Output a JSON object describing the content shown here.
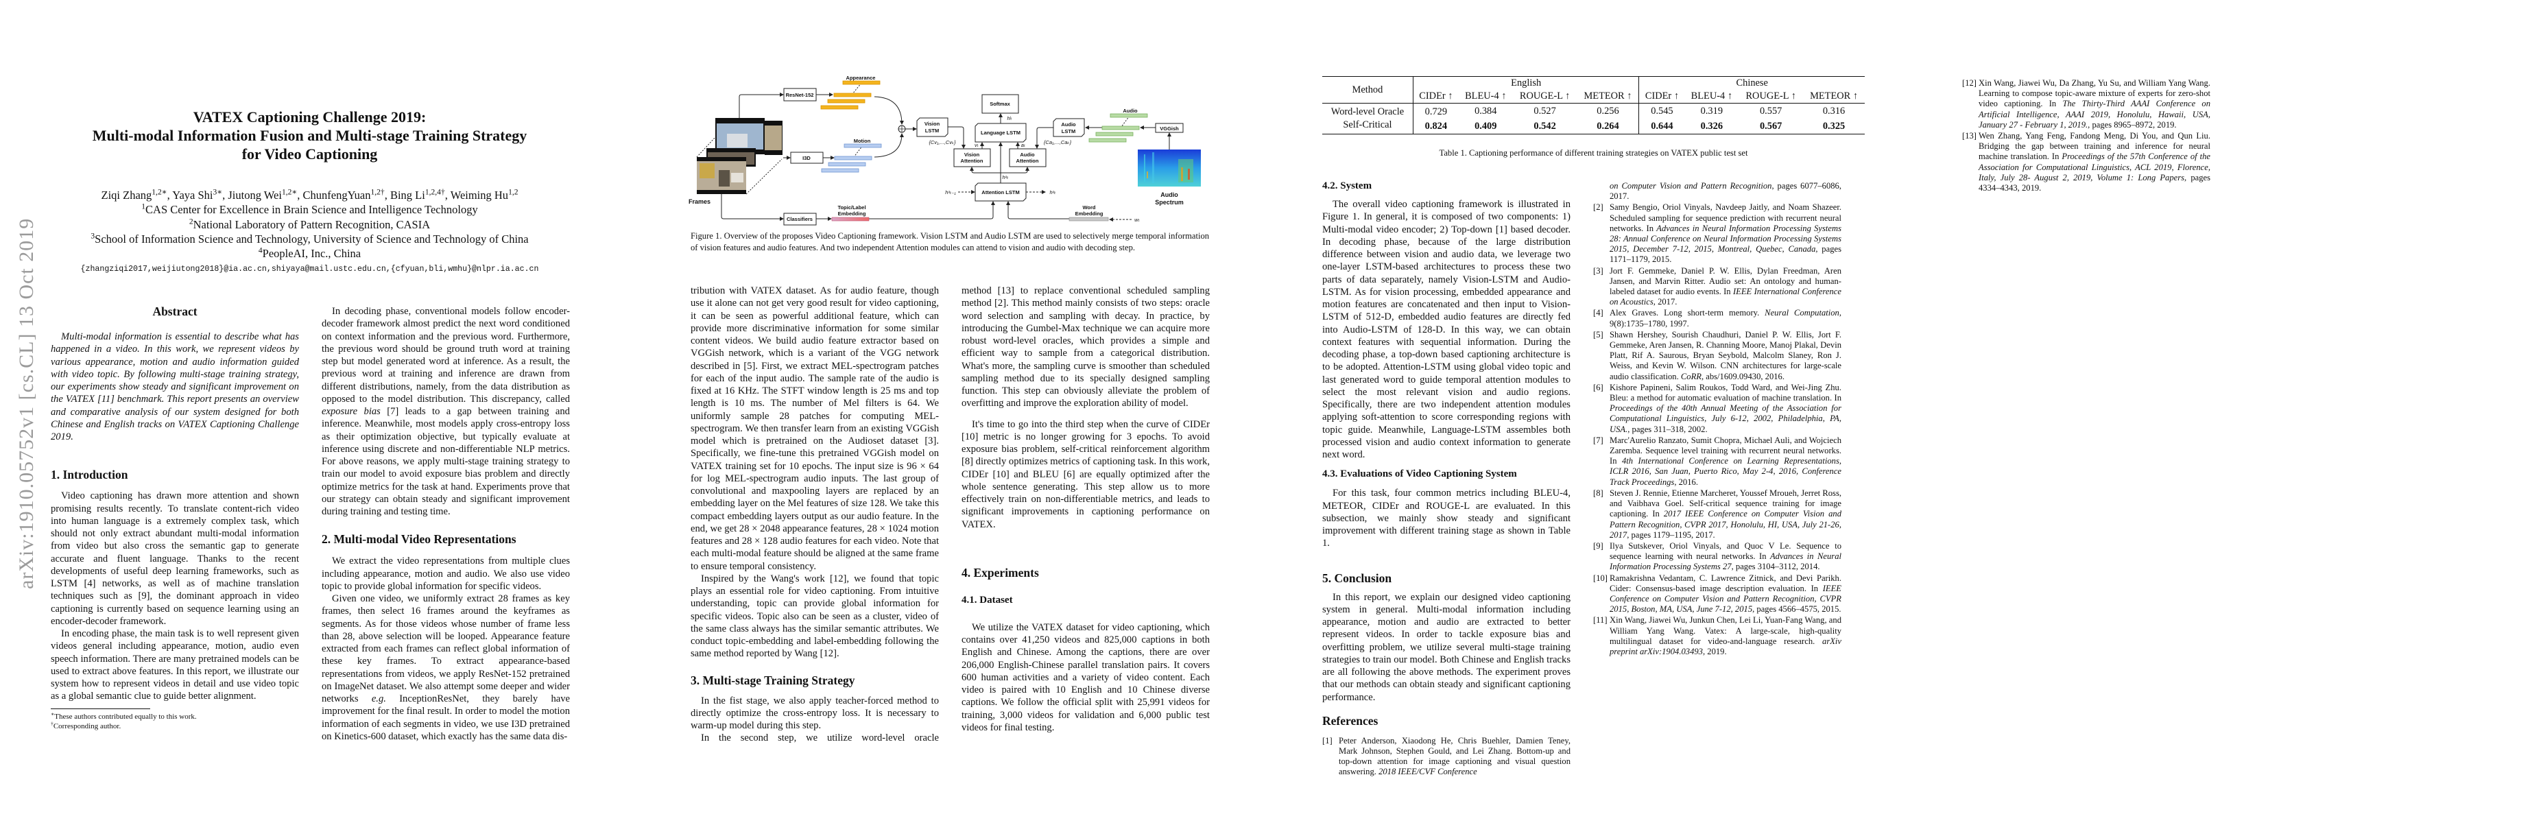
{
  "arxiv_stamp": "arXiv:1910.05752v1  [cs.CL]  13 Oct 2019",
  "page1": {
    "title_lines": [
      "VATEX Captioning Challenge 2019:",
      "Multi-modal Information Fusion and Multi-stage Training Strategy",
      "for Video Captioning"
    ],
    "authors": [
      {
        "name": "Ziqi Zhang",
        "sup": "1,2∗"
      },
      {
        "name": "Yaya Shi",
        "sup": "3∗"
      },
      {
        "name": "Jiutong Wei",
        "sup": "1,2∗"
      },
      {
        "name": "ChunfengYuan",
        "sup": "1,2†"
      },
      {
        "name": "Bing Li",
        "sup": "1,2,4†"
      },
      {
        "name": "Weiming Hu",
        "sup": "1,2"
      }
    ],
    "affiliations": [
      {
        "sup": "1",
        "text": "CAS Center for Excellence in Brain Science and Intelligence Technology"
      },
      {
        "sup": "2",
        "text": "National Laboratory of Pattern Recognition, CASIA"
      },
      {
        "sup": "3",
        "text": "School of Information Science and Technology, University of Science and Technology of China"
      },
      {
        "sup": "4",
        "text": "PeopleAI, Inc., China"
      }
    ],
    "email": "{zhangziqi2017,weijiutong2018}@ia.ac.cn,shiyaya@mail.ustc.edu.cn,{cfyuan,bli,wmhu}@nlpr.ia.ac.cn",
    "abstract_heading": "Abstract",
    "abstract": "Multi-modal information is essential to describe what has happened in a video. In this work, we represent videos by various appearance, motion and audio information guided with video topic. By following multi-stage training strategy, our experiments show steady and significant improvement on the VATEX [11] benchmark. This report presents an overview and comparative analysis of our system designed for both Chinese and English tracks on VATEX Captioning Challenge 2019.",
    "intro_heading": "1. Introduction",
    "intro_p1": "Video captioning has drawn more attention and shown promising results recently. To translate content-rich video into human language is a extremely complex task, which should not only extract abundant multi-modal information from video but also cross the semantic gap to generate accurate and fluent language. Thanks to the recent developments of useful deep learning frameworks, such as LSTM [4] networks, as well as of machine translation techniques such as [9], the dominant approach in video captioning is currently based on sequence learning using an encoder-decoder framework.",
    "intro_p2": "In encoding phase, the main task is to well represent given videos general including appearance, motion, audio even speech information. There are many pretrained models can be used to extract above features. In this report, we illustrate our system how to represent videos in detail and use video topic as a global semantic clue to guide better alignment.",
    "footnotes": [
      {
        "mark": "∗",
        "text": "These authors contributed equally to this work."
      },
      {
        "mark": "†",
        "text": "Corresponding author."
      }
    ],
    "decoding_p": {
      "a": "In decoding phase, conventional models follow encoder-decoder framework almost predict the next word conditioned on context information and the previous word. Furthermore, the previous word should be ground truth word at training step but model generated word at inference. As a result, the previous word at training and inference are drawn from different distributions, namely, from the data distribution as opposed to the model distribution. This discrepancy, called ",
      "em": "exposure bias",
      "b": " [7] leads to a gap between training and inference. Meanwhile, most models apply cross-entropy loss as their optimization objective, but typically evaluate at inference using discrete and non-differentiable NLP metrics. For above reasons, we apply multi-stage training strategy to train our model to avoid exposure bias problem and directly optimize metrics for the task at hand. Experiments prove that our strategy can obtain steady and significant improvement during training and testing time."
    },
    "sec2_heading": "2. Multi-modal Video Representations",
    "sec2_p1": "We extract the video representations from multiple clues including appearance, motion and audio. We also use video topic to provide global information for specific videos.",
    "sec2_p2": {
      "a": "Given one video, we uniformly extract 28 frames as key frames, then select 16 frames around the keyframes as segments. As for those videos whose number of frame less than 28, above selection will be looped. Appearance feature extracted from each frames can reflect global information of these key frames. To extract appearance-based representations from videos, we apply ResNet-152 pretrained on ImageNet dataset. We also attempt some deeper and wider networks ",
      "em": "e.g.",
      "b": " InceptionResNet, they barely have improvement for the final result. In order to model the motion information of each segments in video, we use I3D pretrained on Kinetics-600 dataset, which exactly has the same data dis-"
    }
  },
  "figure": {
    "labels": {
      "resnet": "ResNet-152",
      "i3d": "I3D",
      "classifiers": "Classifiers",
      "appearance": "Appearance",
      "motion": "Motion",
      "frames": "Frames",
      "topic_line1": "Topic/Label",
      "topic_line2": "Embedding",
      "vision_lstm_1": "Vision",
      "vision_lstm_2": "LSTM",
      "cv": "{Cv₁,...,Cvₖ}",
      "softmax": "Softmax",
      "hl": "hˡₜ",
      "language_lstm": "Language LSTM",
      "vt": "vₜ",
      "at": "aₜ",
      "vision_att_1": "Vision",
      "vision_att_2": "Attention",
      "audio_att_1": "Audio",
      "audio_att_2": "Attention",
      "ha_mid": "hᵃₜ",
      "ha_prev": "hᵃₜ₋₁",
      "attention_lstm": "Attention LSTM",
      "ha_out": "hᵃₜ",
      "audio_lstm_1": "Audio",
      "audio_lstm_2": "LSTM",
      "ca": "{Ca₁,...,Caₖ}",
      "audio": "Audio",
      "vggish": "VGGish",
      "spectrum_1": "Audio",
      "spectrum_2": "Spectrum",
      "word_1": "Word",
      "word_2": "Embedding",
      "wt": "wₜ"
    },
    "colors": {
      "appearance": "#f4b41e",
      "motion": "#b7cdf0",
      "audio": "#b8dba5",
      "topic": "#e3768a",
      "word": "#c8c8c8"
    },
    "caption": "Figure 1. Overview of the proposes Video Captioning framework. Vision LSTM and Audio LSTM are used to selectively merge temporal information of vision features and audio features. And two independent Attention modules can attend to vision and audio with decoding step."
  },
  "page2": {
    "col1_p1": "tribution with VATEX dataset. As for audio feature, though use it alone can not get very good result for video captioning, it can be seen as powerful additional feature, which can provide more discriminative information for some similar content videos. We build audio feature extractor based on VGGish network, which is a variant of the VGG network described in [5]. First, we extract MEL-spectrogram patches for each of the input audio. The sample rate of the audio is fixed at 16 KHz. The STFT window length is 25 ms and top length is 10 ms. The number of Mel filters is 64. We uniformly sample 28 patches for computing MEL-spectrogram. We then transfer learn from an existing VGGish model which is pretrained on the Audioset dataset [3]. Specifically, we fine-tune this pretrained VGGish model on VATEX training set for 10 epochs. The input size is 96 × 64 for log MEL-spectrogram audio inputs. The last group of convolutional and maxpooling layers are replaced by an embedding layer on the Mel features of size 128. We take this compact embedding layers output as our audio feature. In the end, we get 28 × 2048 appearance features, 28 × 1024 motion features and 28 × 128 audio features for each video. Note that each multi-modal feature should be aligned at the same frame to ensure temporal consistency.",
    "col1_p2": "Inspired by the Wang's work [12], we found that topic plays an essential role for video captioning. From intuitive understanding, topic can provide global information for specific videos. Topic also can be seen as a cluster, video of the same class always has the similar semantic attributes. We conduct topic-embedding and label-embedding following the same method reported by Wang [12].",
    "sec3_heading": "3. Multi-stage Training Strategy",
    "sec3_p1": "In the fist stage, we also apply teacher-forced method to directly optimize the cross-entropy loss. It is necessary to warm-up model during this step.",
    "sec3_p2": "In the second step, we utilize word-level oracle",
    "col2_p1": "method [13] to replace conventional scheduled sampling method [2]. This method mainly consists of two steps: oracle word selection and sampling with decay. In practice, by introducing the Gumbel-Max technique we can acquire more robust word-level oracles, which provides a simple and efficient way to sample from a categorical distribution. What's more, the sampling curve is smoother than scheduled sampling method due to its specially designed sampling function. This step can obviously alleviate the problem of overfitting and improve the exploration ability of model.",
    "col2_p2": "It's time to go into the third step when the curve of CIDEr [10] metric is no longer growing for 3 epochs. To avoid exposure bias problem, self-critical reinforcement algorithm [8] directly optimizes metrics of captioning task. In this work, CIDEr [10] and BLEU [6] are equally optimized after the whole sentence generating. This step allow us to more effectively train on non-differentiable metrics, and leads to significant improvements in captioning performance on VATEX.",
    "sec4_heading": "4. Experiments",
    "sec41_heading": "4.1. Dataset",
    "sec41_p": "We utilize the VATEX dataset for video captioning, which contains over 41,250 videos and 825,000 captions in both English and Chinese. Among the captions, there are over 206,000 English-Chinese parallel translation pairs. It covers 600 human activities and a variety of video content. Each video is paired with 10 English and 10 Chinese diverse captions. We follow the official split with 25,991 videos for training, 3,000 videos for validation and 6,000 public test videos for final testing."
  },
  "table": {
    "method_header": "Method",
    "groups": [
      "English",
      "Chinese"
    ],
    "metrics": [
      "CIDEr ↑",
      "BLEU-4 ↑",
      "ROUGE-L ↑",
      "METEOR ↑",
      "CIDEr ↑",
      "BLEU-4 ↑",
      "ROUGE-L ↑",
      "METEOR ↑"
    ],
    "rows": [
      {
        "method": "Word-level Oracle",
        "values": [
          "0.729",
          "0.384",
          "0.527",
          "0.256",
          "0.545",
          "0.319",
          "0.557",
          "0.316"
        ],
        "bold": false
      },
      {
        "method": "Self-Critical",
        "values": [
          "0.824",
          "0.409",
          "0.542",
          "0.264",
          "0.644",
          "0.326",
          "0.567",
          "0.325"
        ],
        "bold": true
      }
    ],
    "caption": "Table 1. Captioning performance of different training strategies on VATEX public test set"
  },
  "page3": {
    "sec42_heading": "4.2. System",
    "sec42_p": "The overall video captioning framework is illustrated in Figure 1. In general, it is composed of two components: 1) Multi-modal video encoder; 2) Top-down [1] based decoder. In decoding phase, because of the large distribution difference between vision and audio data, we leverage two one-layer LSTM-based architectures to process these two parts of data separately, namely Vision-LSTM and Audio-LSTM. As for vision processing, embedded appearance and motion features are concatenated and then input to Vision-LSTM of 512-D, embedded audio features are directly fed into Audio-LSTM of 128-D. In this way, we can obtain context features with sequential information. During the decoding phase, a top-down based captioning architecture is to be adopted. Attention-LSTM using global video topic and last generated word to guide temporal attention modules to select the most relevant vision and audio regions. Specifically, there are two independent attention modules applying soft-attention to score corresponding regions with topic guide. Meanwhile, Language-LSTM assembles both processed vision and audio context information to generate next word.",
    "sec43_heading": "4.3. Evaluations of Video Captioning System",
    "sec43_p": "For this task, four common metrics including BLEU-4, METEOR, CIDEr and ROUGE-L are evaluated. In this subsection, we mainly show steady and significant improvement with different training stage as shown in Table 1.",
    "sec5_heading": "5. Conclusion",
    "sec5_p": "In this report, we explain our designed video captioning system in general. Multi-modal information including appearance, motion and audio are extracted to better represent videos. In order to tackle exposure bias and overfitting problem, we utilize several multi-stage training strategies to train our model. Both Chinese and English tracks are all following the above methods. The experiment proves that our methods can obtain steady and significant captioning performance.",
    "refs_heading": "References"
  },
  "references": [
    {
      "num": "[1]",
      "text": "Peter Anderson, Xiaodong He, Chris Buehler, Damien Teney, Mark Johnson, Stephen Gould, and Lei Zhang. Bottom-up and top-down attention for image captioning and visual question answering. ",
      "venue": "2018 IEEE/CVF Conference",
      "tail": ""
    },
    {
      "num": "",
      "text": "",
      "venue": "on Computer Vision and Pattern Recognition",
      "tail": ", pages 6077–6086, 2017."
    },
    {
      "num": "[2]",
      "text": "Samy Bengio, Oriol Vinyals, Navdeep Jaitly, and Noam Shazeer. Scheduled sampling for sequence prediction with recurrent neural networks. In ",
      "venue": "Advances in Neural Information Processing Systems 28: Annual Conference on Neural Information Processing Systems 2015, December 7-12, 2015, Montreal, Quebec, Canada",
      "tail": ", pages 1171–1179, 2015."
    },
    {
      "num": "[3]",
      "text": "Jort F. Gemmeke, Daniel P. W. Ellis, Dylan Freedman, Aren Jansen, and Marvin Ritter. Audio set: An ontology and human-labeled dataset for audio events. In ",
      "venue": "IEEE International Conference on Acoustics",
      "tail": ", 2017."
    },
    {
      "num": "[4]",
      "text": "Alex Graves. Long short-term memory. ",
      "venue": "Neural Computation",
      "tail": ", 9(8):1735–1780, 1997."
    },
    {
      "num": "[5]",
      "text": "Shawn Hershey, Sourish Chaudhuri, Daniel P. W. Ellis, Jort F. Gemmeke, Aren Jansen, R. Channing Moore, Manoj Plakal, Devin Platt, Rif A. Saurous, Bryan Seybold, Malcolm Slaney, Ron J. Weiss, and Kevin W. Wilson. CNN architectures for large-scale audio classification. ",
      "venue": "CoRR",
      "tail": ", abs/1609.09430, 2016."
    },
    {
      "num": "[6]",
      "text": "Kishore Papineni, Salim Roukos, Todd Ward, and Wei-Jing Zhu. Bleu: a method for automatic evaluation of machine translation. In ",
      "venue": "Proceedings of the 40th Annual Meeting of the Association for Computational Linguistics, July 6-12, 2002, Philadelphia, PA, USA.",
      "tail": ", pages 311–318, 2002."
    },
    {
      "num": "[7]",
      "text": "Marc'Aurelio Ranzato, Sumit Chopra, Michael Auli, and Wojciech Zaremba. Sequence level training with recurrent neural networks. In ",
      "venue": "4th International Conference on Learning Representations, ICLR 2016, San Juan, Puerto Rico, May 2-4, 2016, Conference Track Proceedings",
      "tail": ", 2016."
    },
    {
      "num": "[8]",
      "text": "Steven J. Rennie, Etienne Marcheret, Youssef Mroueh, Jerret Ross, and Vaibhava Goel. Self-critical sequence training for image captioning. In ",
      "venue": "2017 IEEE Conference on Computer Vision and Pattern Recognition, CVPR 2017, Honolulu, HI, USA, July 21-26, 2017",
      "tail": ", pages 1179–1195, 2017."
    },
    {
      "num": "[9]",
      "text": "Ilya Sutskever, Oriol Vinyals, and Quoc V Le. Sequence to sequence learning with neural networks. In ",
      "venue": "Advances in Neural Information Processing Systems 27",
      "tail": ", pages 3104–3112, 2014."
    },
    {
      "num": "[10]",
      "text": "Ramakrishna Vedantam, C. Lawrence Zitnick, and Devi Parikh. Cider: Consensus-based image description evaluation. In ",
      "venue": "IEEE Conference on Computer Vision and Pattern Recognition, CVPR 2015, Boston, MA, USA, June 7-12, 2015",
      "tail": ", pages 4566–4575, 2015."
    },
    {
      "num": "[11]",
      "text": "Xin Wang, Jiawei Wu, Junkun Chen, Lei Li, Yuan-Fang Wang, and William Yang Wang. Vatex: A large-scale, high-quality multilingual dataset for video-and-language research. ",
      "venue": "arXiv preprint arXiv:1904.03493",
      "tail": ", 2019."
    },
    {
      "num": "[12]",
      "text": "Xin Wang, Jiawei Wu, Da Zhang, Yu Su, and William Yang Wang. Learning to compose topic-aware mixture of experts for zero-shot video captioning. In ",
      "venue": "The Thirty-Third AAAI Conference on Artificial Intelligence, AAAI 2019, Honolulu, Hawaii, USA, January 27 - February 1, 2019.",
      "tail": ", pages 8965–8972, 2019."
    },
    {
      "num": "[13]",
      "text": "Wen Zhang, Yang Feng, Fandong Meng, Di You, and Qun Liu. Bridging the gap between training and inference for neural machine translation. In ",
      "venue": "Proceedings of the 57th Conference of the Association for Computational Linguistics, ACL 2019, Florence, Italy, July 28- August 2, 2019, Volume 1: Long Papers",
      "tail": ", pages 4334–4343, 2019."
    }
  ]
}
